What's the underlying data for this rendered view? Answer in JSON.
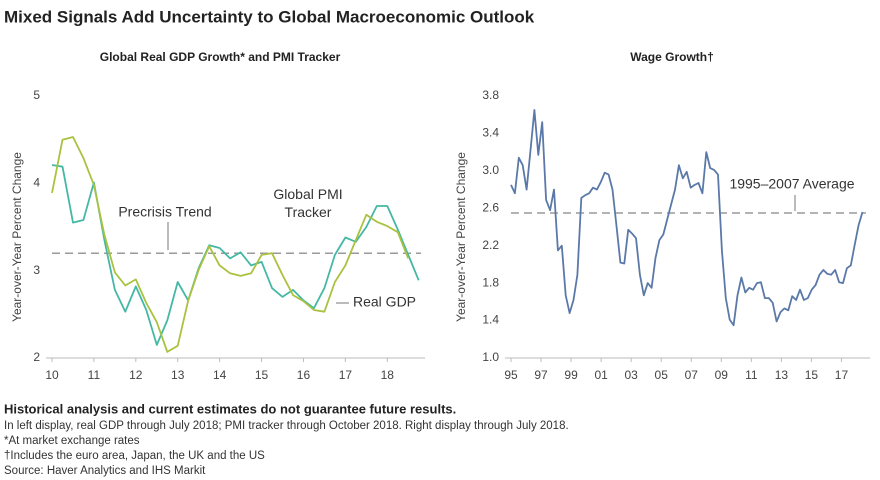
{
  "title": "Mixed Signals Add Uncertainty to Global Macroeconomic Outlook",
  "footnotes": {
    "disclaimer": "Historical analysis and current estimates do not guarantee future results.",
    "notes": [
      "In left display, real GDP through July 2018; PMI tracker through October 2018. Right display through July 2018.",
      "*At market exchange rates",
      "†Includes the euro area, Japan, the UK and the US",
      "Source: Haver Analytics and IHS Markit"
    ]
  },
  "chart_data": [
    {
      "type": "line",
      "title": "Global Real GDP Growth* and PMI Tracker",
      "y_label": "Year-over-Year Percent Change",
      "xlim": [
        10,
        18.9
      ],
      "xticks": [
        10,
        11,
        12,
        13,
        14,
        15,
        16,
        17,
        18
      ],
      "ylim": [
        2,
        5
      ],
      "yticks": [
        2,
        3,
        4,
        5
      ],
      "reference_lines": [
        {
          "value": 3.2,
          "label": "Precrisis Trend"
        }
      ],
      "series": [
        {
          "name": "Real GDP",
          "color": "#45b8a5",
          "x": [
            10,
            10.25,
            10.5,
            10.75,
            11,
            11.25,
            11.5,
            11.75,
            12,
            12.25,
            12.5,
            12.75,
            13,
            13.25,
            13.5,
            13.75,
            14,
            14.25,
            14.5,
            14.75,
            15,
            15.25,
            15.5,
            15.75,
            16,
            16.25,
            16.5,
            16.75,
            17,
            17.25,
            17.5,
            17.75,
            18,
            18.25,
            18.5,
            18.75
          ],
          "values": [
            4.21,
            4.19,
            3.55,
            3.58,
            4.01,
            3.35,
            2.78,
            2.53,
            2.82,
            2.55,
            2.15,
            2.43,
            2.87,
            2.66,
            3.03,
            3.29,
            3.26,
            3.14,
            3.21,
            3.06,
            3.1,
            2.8,
            2.7,
            2.78,
            2.66,
            2.57,
            2.8,
            3.18,
            3.38,
            3.33,
            3.5,
            3.74,
            3.74,
            3.47,
            3.18,
            2.89
          ]
        },
        {
          "name": "Global PMI Tracker",
          "color": "#a9c23f",
          "x": [
            10,
            10.25,
            10.5,
            10.75,
            11,
            11.25,
            11.5,
            11.75,
            12,
            12.25,
            12.5,
            12.75,
            13,
            13.25,
            13.5,
            13.75,
            14,
            14.25,
            14.5,
            14.75,
            15,
            15.25,
            15.5,
            15.75,
            16,
            16.25,
            16.5,
            16.75,
            17,
            17.25,
            17.5,
            17.75,
            18,
            18.25,
            18.5
          ],
          "values": [
            3.89,
            4.5,
            4.53,
            4.29,
            3.98,
            3.41,
            2.98,
            2.83,
            2.9,
            2.63,
            2.41,
            2.07,
            2.14,
            2.66,
            3.01,
            3.28,
            3.06,
            2.97,
            2.94,
            2.97,
            3.18,
            3.2,
            2.95,
            2.72,
            2.65,
            2.55,
            2.53,
            2.87,
            3.06,
            3.35,
            3.64,
            3.56,
            3.51,
            3.44,
            3.14
          ]
        }
      ]
    },
    {
      "type": "line",
      "title": "Wage Growth†",
      "y_label": "Year-over-Year Percent Change",
      "xlim": [
        1995,
        2018.9
      ],
      "xticks": [
        {
          "value": 1995,
          "label": "95"
        },
        {
          "value": 1997,
          "label": "97"
        },
        {
          "value": 1999,
          "label": "99"
        },
        {
          "value": 2001,
          "label": "01"
        },
        {
          "value": 2003,
          "label": "03"
        },
        {
          "value": 2005,
          "label": "05"
        },
        {
          "value": 2007,
          "label": "07"
        },
        {
          "value": 2009,
          "label": "09"
        },
        {
          "value": 2011,
          "label": "11"
        },
        {
          "value": 2013,
          "label": "13"
        },
        {
          "value": 2015,
          "label": "15"
        },
        {
          "value": 2017,
          "label": "17"
        }
      ],
      "ylim": [
        1,
        3.8
      ],
      "yticks": [
        {
          "value": 1,
          "label": "1.0"
        },
        1.4,
        1.8,
        2.2,
        2.6,
        {
          "value": 3,
          "label": "3.0"
        },
        3.4,
        3.8
      ],
      "reference_lines": [
        {
          "value": 2.55,
          "label": "1995–2007 Average"
        }
      ],
      "series": [
        {
          "color": "#5b79a8",
          "x": [
            1995,
            1995.26,
            1995.52,
            1995.78,
            1996.04,
            1996.3,
            1996.56,
            1996.82,
            1997.08,
            1997.34,
            1997.6,
            1997.86,
            1998.12,
            1998.38,
            1998.64,
            1998.9,
            1999.16,
            1999.42,
            1999.68,
            1999.94,
            2000.2,
            2000.46,
            2000.72,
            2000.98,
            2001.24,
            2001.5,
            2001.76,
            2002.02,
            2002.28,
            2002.54,
            2002.8,
            2003.06,
            2003.32,
            2003.58,
            2003.84,
            2004.1,
            2004.36,
            2004.62,
            2004.88,
            2005.14,
            2005.4,
            2005.66,
            2005.92,
            2006.18,
            2006.44,
            2006.7,
            2006.96,
            2007.22,
            2007.48,
            2007.74,
            2008,
            2008.26,
            2008.52,
            2008.78,
            2009.04,
            2009.3,
            2009.56,
            2009.82,
            2010.08,
            2010.34,
            2010.6,
            2010.86,
            2011.12,
            2011.38,
            2011.64,
            2011.9,
            2012.16,
            2012.42,
            2012.68,
            2012.94,
            2013.2,
            2013.46,
            2013.72,
            2013.98,
            2014.24,
            2014.5,
            2014.76,
            2015.02,
            2015.28,
            2015.54,
            2015.8,
            2016.06,
            2016.32,
            2016.58,
            2016.84,
            2017.1,
            2017.36,
            2017.62,
            2017.88,
            2018.14,
            2018.4
          ],
          "values": [
            2.85,
            2.76,
            3.14,
            3.06,
            2.8,
            3.22,
            3.65,
            3.17,
            3.52,
            2.69,
            2.58,
            2.8,
            2.15,
            2.2,
            1.67,
            1.48,
            1.62,
            1.89,
            2.71,
            2.74,
            2.76,
            2.82,
            2.8,
            2.88,
            2.98,
            2.96,
            2.8,
            2.42,
            2.02,
            2.01,
            2.37,
            2.33,
            2.28,
            1.89,
            1.67,
            1.8,
            1.75,
            2.07,
            2.26,
            2.32,
            2.48,
            2.64,
            2.8,
            3.06,
            2.92,
            2.99,
            2.82,
            2.85,
            2.87,
            2.76,
            3.2,
            3.03,
            3.01,
            2.96,
            2.15,
            1.64,
            1.41,
            1.35,
            1.67,
            1.86,
            1.7,
            1.75,
            1.73,
            1.8,
            1.81,
            1.64,
            1.64,
            1.59,
            1.39,
            1.49,
            1.53,
            1.51,
            1.66,
            1.62,
            1.73,
            1.62,
            1.64,
            1.73,
            1.78,
            1.89,
            1.94,
            1.9,
            1.89,
            1.94,
            1.81,
            1.8,
            1.96,
            1.99,
            2.21,
            2.42,
            2.56
          ]
        }
      ]
    }
  ]
}
